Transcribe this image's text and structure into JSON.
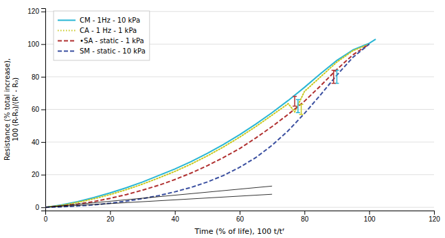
{
  "chart_data": {
    "type": "line",
    "xlabel": "Time (% of life), 100 t/tᶠ",
    "ylabel": "Resistance (% total increase),\n100 (R-R₀)/(Rᶠ - R₀)",
    "xlim": [
      0,
      120
    ],
    "ylim": [
      -2,
      122
    ],
    "xticks": [
      0,
      20,
      40,
      60,
      80,
      100,
      120
    ],
    "yticks": [
      0,
      20,
      40,
      60,
      80,
      100,
      120
    ],
    "grid": "y",
    "legend": "upper left",
    "series": [
      {
        "name": "CM - 1Hz - 10 kPa",
        "color": "#29b6d4",
        "line_style": "solid",
        "x": [
          0,
          5,
          10,
          15,
          20,
          25,
          30,
          35,
          40,
          45,
          50,
          55,
          60,
          65,
          70,
          75,
          80,
          85,
          90,
          95,
          100,
          102
        ],
        "values": [
          0,
          1.5,
          3.5,
          6.0,
          8.8,
          12.0,
          15.5,
          19.5,
          23.5,
          28.0,
          33.0,
          38.5,
          44.5,
          51.0,
          58.0,
          65.5,
          73.5,
          82.0,
          90.0,
          96.5,
          100.5,
          103.0
        ],
        "error_bars": {
          "x": [
            78,
            90
          ],
          "values": [
            62,
            80
          ],
          "errors": [
            4,
            4
          ]
        }
      },
      {
        "name": "CA - 1 Hz - 1 kPa",
        "color": "#c8c820",
        "line_style": "dotted",
        "x": [
          0,
          5,
          10,
          15,
          20,
          25,
          30,
          35,
          40,
          45,
          50,
          55,
          60,
          65,
          70,
          75,
          77,
          80,
          85,
          90,
          95,
          100
        ],
        "values": [
          0,
          1.2,
          3.0,
          5.2,
          7.8,
          10.8,
          14.2,
          18.0,
          22.0,
          26.5,
          31.5,
          37.0,
          43.0,
          49.5,
          56.5,
          63.5,
          58.5,
          71.0,
          80.0,
          89.0,
          96.0,
          100.0
        ],
        "error_bars": {
          "x": [
            79
          ],
          "values": [
            60
          ],
          "errors": [
            3
          ]
        }
      },
      {
        "name": "•SA - static - 1 kPa",
        "color": "#b03030",
        "line_style": "dashed",
        "x": [
          0,
          5,
          10,
          15,
          20,
          25,
          30,
          35,
          40,
          45,
          50,
          55,
          60,
          65,
          70,
          75,
          80,
          85,
          90,
          95,
          100
        ],
        "values": [
          0,
          0.8,
          2.0,
          3.5,
          5.5,
          7.8,
          10.5,
          13.5,
          17.0,
          21.0,
          25.5,
          30.5,
          36.0,
          42.5,
          49.5,
          57.0,
          65.0,
          74.5,
          84.5,
          93.5,
          100.0
        ],
        "error_bars": {
          "x": [
            77,
            89
          ],
          "values": [
            65,
            80
          ],
          "errors": [
            3,
            4
          ]
        }
      },
      {
        "name": "SM - static - 10 kPa",
        "color": "#3a4fa0",
        "line_style": "dashed",
        "x": [
          0,
          5,
          10,
          15,
          20,
          25,
          30,
          35,
          40,
          45,
          50,
          55,
          60,
          65,
          70,
          75,
          80,
          85,
          90,
          95,
          100
        ],
        "values": [
          0,
          0.3,
          0.8,
          1.5,
          2.5,
          3.8,
          5.3,
          7.2,
          9.5,
          12.2,
          15.5,
          19.5,
          24.5,
          30.5,
          38.0,
          47.0,
          57.5,
          69.0,
          81.0,
          92.0,
          100.0
        ]
      },
      {
        "color": "#000000",
        "line_style": "solid",
        "x": [
          0,
          70
        ],
        "values": [
          0,
          13
        ]
      },
      {
        "color": "#000000",
        "line_style": "solid",
        "x": [
          0,
          70
        ],
        "values": [
          0,
          8
        ]
      }
    ]
  }
}
